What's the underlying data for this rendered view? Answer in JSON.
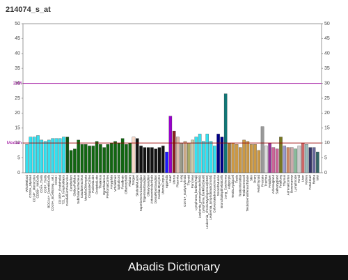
{
  "chart_data": {
    "type": "bar",
    "title": "214074_s_at",
    "categories": [
      "WholeBlood",
      "CD33+_Myeloid",
      "CD14+_Monocytes",
      "CD56+_NKCells",
      "CD4+_Tcells",
      "CD8+_Tcells",
      "BDCA4+_DentriticCells",
      "CD19+_BCells(neg._sel.)",
      "CD34+",
      "CD105+_Endothelial",
      "721_B_lymphoblasts",
      "CerebellumPeduncles",
      "Cerebellum",
      "GlobusPallidus",
      "SubthalamicNucleus",
      "Caudatenucleus",
      "MedullaOblongata",
      "CingulateCortex",
      "ParietalLobe",
      "OccipitalLobe",
      "Thalamus",
      "Hypothalamus",
      "PrefrontalCortex",
      "Amygdala",
      "WholeBrain",
      "Spinalcord",
      "Fetalbrain",
      "OlfactoryBulb",
      "Pituitary",
      "Tongue",
      "SkeletalMuscle",
      "SuperiorCervicalGanglion",
      "TrigeminalGanglion",
      "CiliaryGanglion",
      "AtrioventricularNode",
      "DorsalRootGanglion",
      "CardiacMyocytes",
      "UterusCorpus",
      "Appendix",
      "Heart",
      "Uterus",
      "Placenta",
      "Lung",
      "CD71+_EarlyErythroid",
      "Thyroid",
      "Pancreas",
      "Lymphoma_burkitts(Raji)",
      "Leukemia_promyelocytic(hl60)",
      "Lymphoma_burkitts(Daudi)",
      "Leukemia_chronicMyelogenous(k562)",
      "Leukemia_lymphoblastic(molt4)",
      "Colorectaladenocarcinoma",
      "SmoothMuscle",
      "BronchialEpithelialCells",
      "Lung_Carcinoma",
      "Adipocyte",
      "TestisLeydigCell",
      "Testis",
      "TestisInterstitial",
      "TestisGermCell",
      "TestisSeminiferousTubule",
      "Skin",
      "Ovary",
      "FetalThyroid",
      "Prostate",
      "Trachea",
      "Fetalliver",
      "Adrenalgland",
      "Salivarygland",
      "Fetallung",
      "Thymus",
      "AdrenalCortex",
      "Bonemarrow",
      "Lymphnode",
      "Tonsil",
      "Liver",
      "Kidney",
      "FetalHeart",
      "Retina",
      "Islet"
    ],
    "values": [
      9.5,
      12,
      12,
      12.5,
      11,
      10.5,
      11,
      11.5,
      11.5,
      11.5,
      12,
      12,
      7.5,
      8,
      11,
      9.5,
      9.5,
      9,
      9,
      10.5,
      9.5,
      8.5,
      9.5,
      10,
      10.5,
      10,
      11.5,
      9.5,
      10,
      12,
      11.5,
      9,
      8.5,
      8.5,
      8.5,
      8,
      8.5,
      9,
      7,
      19,
      14,
      12,
      10,
      10.5,
      10,
      11,
      12,
      13,
      10.5,
      13,
      10.5,
      9,
      13,
      12,
      26.5,
      10,
      10,
      9.5,
      8.5,
      11,
      10.5,
      9.5,
      9.5,
      7.5,
      15.5,
      9,
      10,
      8.5,
      8,
      12,
      9,
      8.5,
      8.5,
      8,
      9,
      10,
      9.5,
      8.5,
      8.5,
      7
    ],
    "colors": [
      "#33e0f0",
      "#33e0f0",
      "#33e0f0",
      "#33e0f0",
      "#33e0f0",
      "#33e0f0",
      "#33e0f0",
      "#33e0f0",
      "#33e0f0",
      "#33e0f0",
      "#33e0f0",
      "#115511",
      "#116611",
      "#116611",
      "#116611",
      "#116611",
      "#116611",
      "#116611",
      "#116611",
      "#116611",
      "#116611",
      "#116611",
      "#116611",
      "#116611",
      "#116611",
      "#116611",
      "#116611",
      "#116611",
      "#116611",
      "#f8d8c8",
      "#111111",
      "#111111",
      "#111111",
      "#111111",
      "#111111",
      "#111111",
      "#111111",
      "#111111",
      "#1a1aff",
      "#9900cc",
      "#882222",
      "#ddbbaa",
      "#999988",
      "#ccaa88",
      "#aaaa66",
      "#ccccaa",
      "#33e0f0",
      "#33e0f0",
      "#33e0f0",
      "#33e0f0",
      "#33e0f0",
      "#33e0f0",
      "#000088",
      "#000088",
      "#117777",
      "#aa7733",
      "#cc9944",
      "#cc9944",
      "#cc9944",
      "#cc9944",
      "#cc9944",
      "#cc9944",
      "#cc9944",
      "#cc9944",
      "#999999",
      "#dddddd",
      "#993399",
      "#cc6699",
      "#cc6699",
      "#777722",
      "#9999cc",
      "#cc8866",
      "#ccaaaa",
      "#88bb99",
      "#cccccc",
      "#cc6666",
      "#99bbbb",
      "#333366",
      "#666699",
      "#336666"
    ],
    "ylim": [
      0,
      50
    ],
    "yticks": [
      0,
      5,
      10,
      15,
      20,
      25,
      30,
      35,
      40,
      45,
      50
    ],
    "reference_lines": [
      {
        "label": "Median",
        "value": 10,
        "color": "#990000"
      },
      {
        "label": "3xM",
        "value": 30,
        "color": "#990099"
      }
    ]
  },
  "caption": "Abadis Dictionary"
}
